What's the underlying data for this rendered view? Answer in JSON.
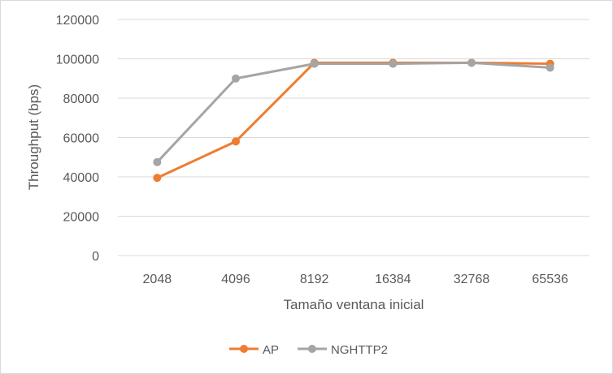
{
  "chart_data": {
    "type": "line",
    "title": "",
    "xlabel": "Tamaño ventana inicial",
    "ylabel": "Throughput (bps)",
    "categories": [
      "2048",
      "4096",
      "8192",
      "16384",
      "32768",
      "65536"
    ],
    "ylim": [
      0,
      120000
    ],
    "yticks": [
      0,
      20000,
      40000,
      60000,
      80000,
      100000,
      120000
    ],
    "grid": true,
    "legend_position": "bottom",
    "series": [
      {
        "name": "AP",
        "color": "#ED7D31",
        "values": [
          39500,
          58000,
          98000,
          98000,
          98000,
          97500
        ]
      },
      {
        "name": "NGHTTP2",
        "color": "#A5A5A5",
        "values": [
          47500,
          90000,
          97500,
          97500,
          98000,
          95500
        ]
      }
    ]
  }
}
